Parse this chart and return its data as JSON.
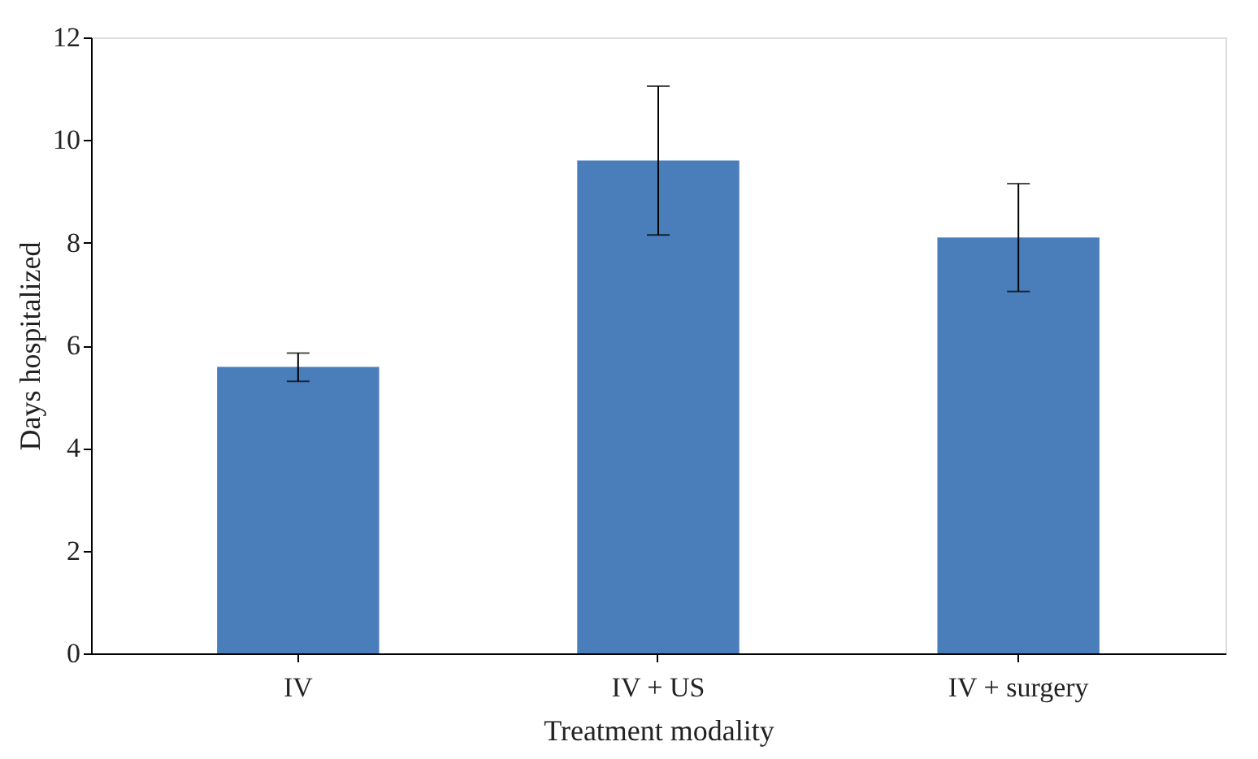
{
  "chart_data": {
    "type": "bar",
    "xlabel": "Treatment modality",
    "ylabel": "Days hospitalized",
    "categories": [
      "IV",
      "IV + US",
      "IV + surgery"
    ],
    "values": [
      5.58,
      9.6,
      8.1
    ],
    "errors": [
      [
        5.3,
        5.85
      ],
      [
        8.15,
        11.05
      ],
      [
        7.05,
        9.15
      ]
    ],
    "color": "#4a7ebb",
    "ylim": [
      0,
      12
    ],
    "yticks": [
      0,
      2,
      4,
      6,
      8,
      10,
      12
    ],
    "grid": false
  }
}
